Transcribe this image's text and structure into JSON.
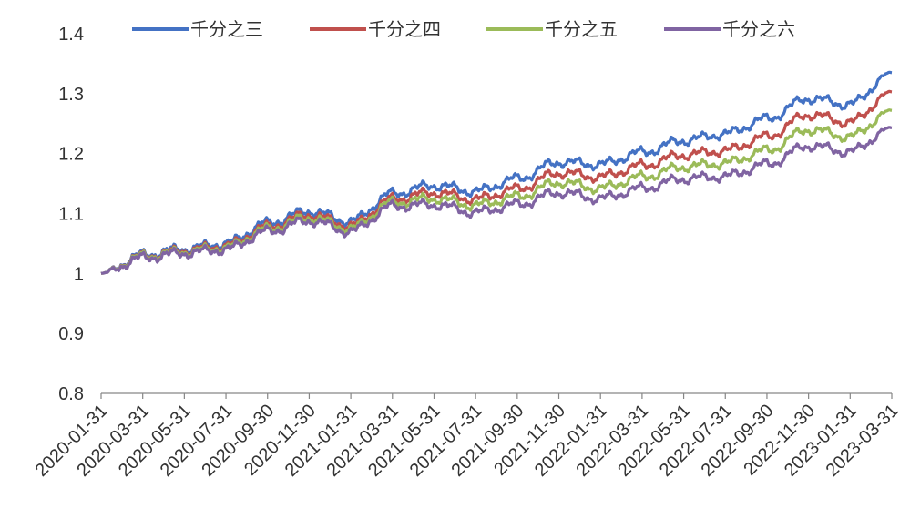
{
  "chart_data": {
    "type": "line",
    "title": "",
    "xlabel": "",
    "ylabel": "",
    "ylim": [
      0.8,
      1.4
    ],
    "yticks": [
      "0.8",
      "0.9",
      "1",
      "1.1",
      "1.2",
      "1.3",
      "1.4"
    ],
    "categories": [
      "2020-01-31",
      "2020-03-31",
      "2020-05-31",
      "2020-07-31",
      "2020-09-30",
      "2020-11-30",
      "2021-01-31",
      "2021-03-31",
      "2021-05-31",
      "2021-07-31",
      "2021-09-30",
      "2021-11-30",
      "2022-01-31",
      "2022-03-31",
      "2022-05-31",
      "2022-07-31",
      "2022-09-30",
      "2022-11-30",
      "2023-01-31",
      "2023-03-31"
    ],
    "legend_position": "top",
    "grid": false,
    "series": [
      {
        "name": "千分之三",
        "color": "#4472C4",
        "values": [
          1.0,
          1.031,
          1.041,
          1.05,
          1.084,
          1.104,
          1.087,
          1.133,
          1.147,
          1.137,
          1.158,
          1.186,
          1.182,
          1.202,
          1.222,
          1.233,
          1.258,
          1.292,
          1.282,
          1.335
        ]
      },
      {
        "name": "千分之四",
        "color": "#C0504D",
        "values": [
          1.0,
          1.029,
          1.038,
          1.046,
          1.078,
          1.098,
          1.08,
          1.124,
          1.135,
          1.124,
          1.141,
          1.168,
          1.161,
          1.18,
          1.198,
          1.205,
          1.228,
          1.265,
          1.252,
          1.303
        ]
      },
      {
        "name": "千分之五",
        "color": "#9BBB59",
        "values": [
          1.0,
          1.028,
          1.036,
          1.043,
          1.074,
          1.093,
          1.075,
          1.118,
          1.125,
          1.114,
          1.128,
          1.152,
          1.142,
          1.161,
          1.178,
          1.184,
          1.205,
          1.24,
          1.228,
          1.272
        ]
      },
      {
        "name": "千分之六",
        "color": "#8064A2",
        "values": [
          1.0,
          1.026,
          1.034,
          1.04,
          1.07,
          1.088,
          1.07,
          1.112,
          1.115,
          1.102,
          1.115,
          1.135,
          1.125,
          1.142,
          1.158,
          1.162,
          1.182,
          1.213,
          1.203,
          1.243
        ]
      }
    ]
  }
}
